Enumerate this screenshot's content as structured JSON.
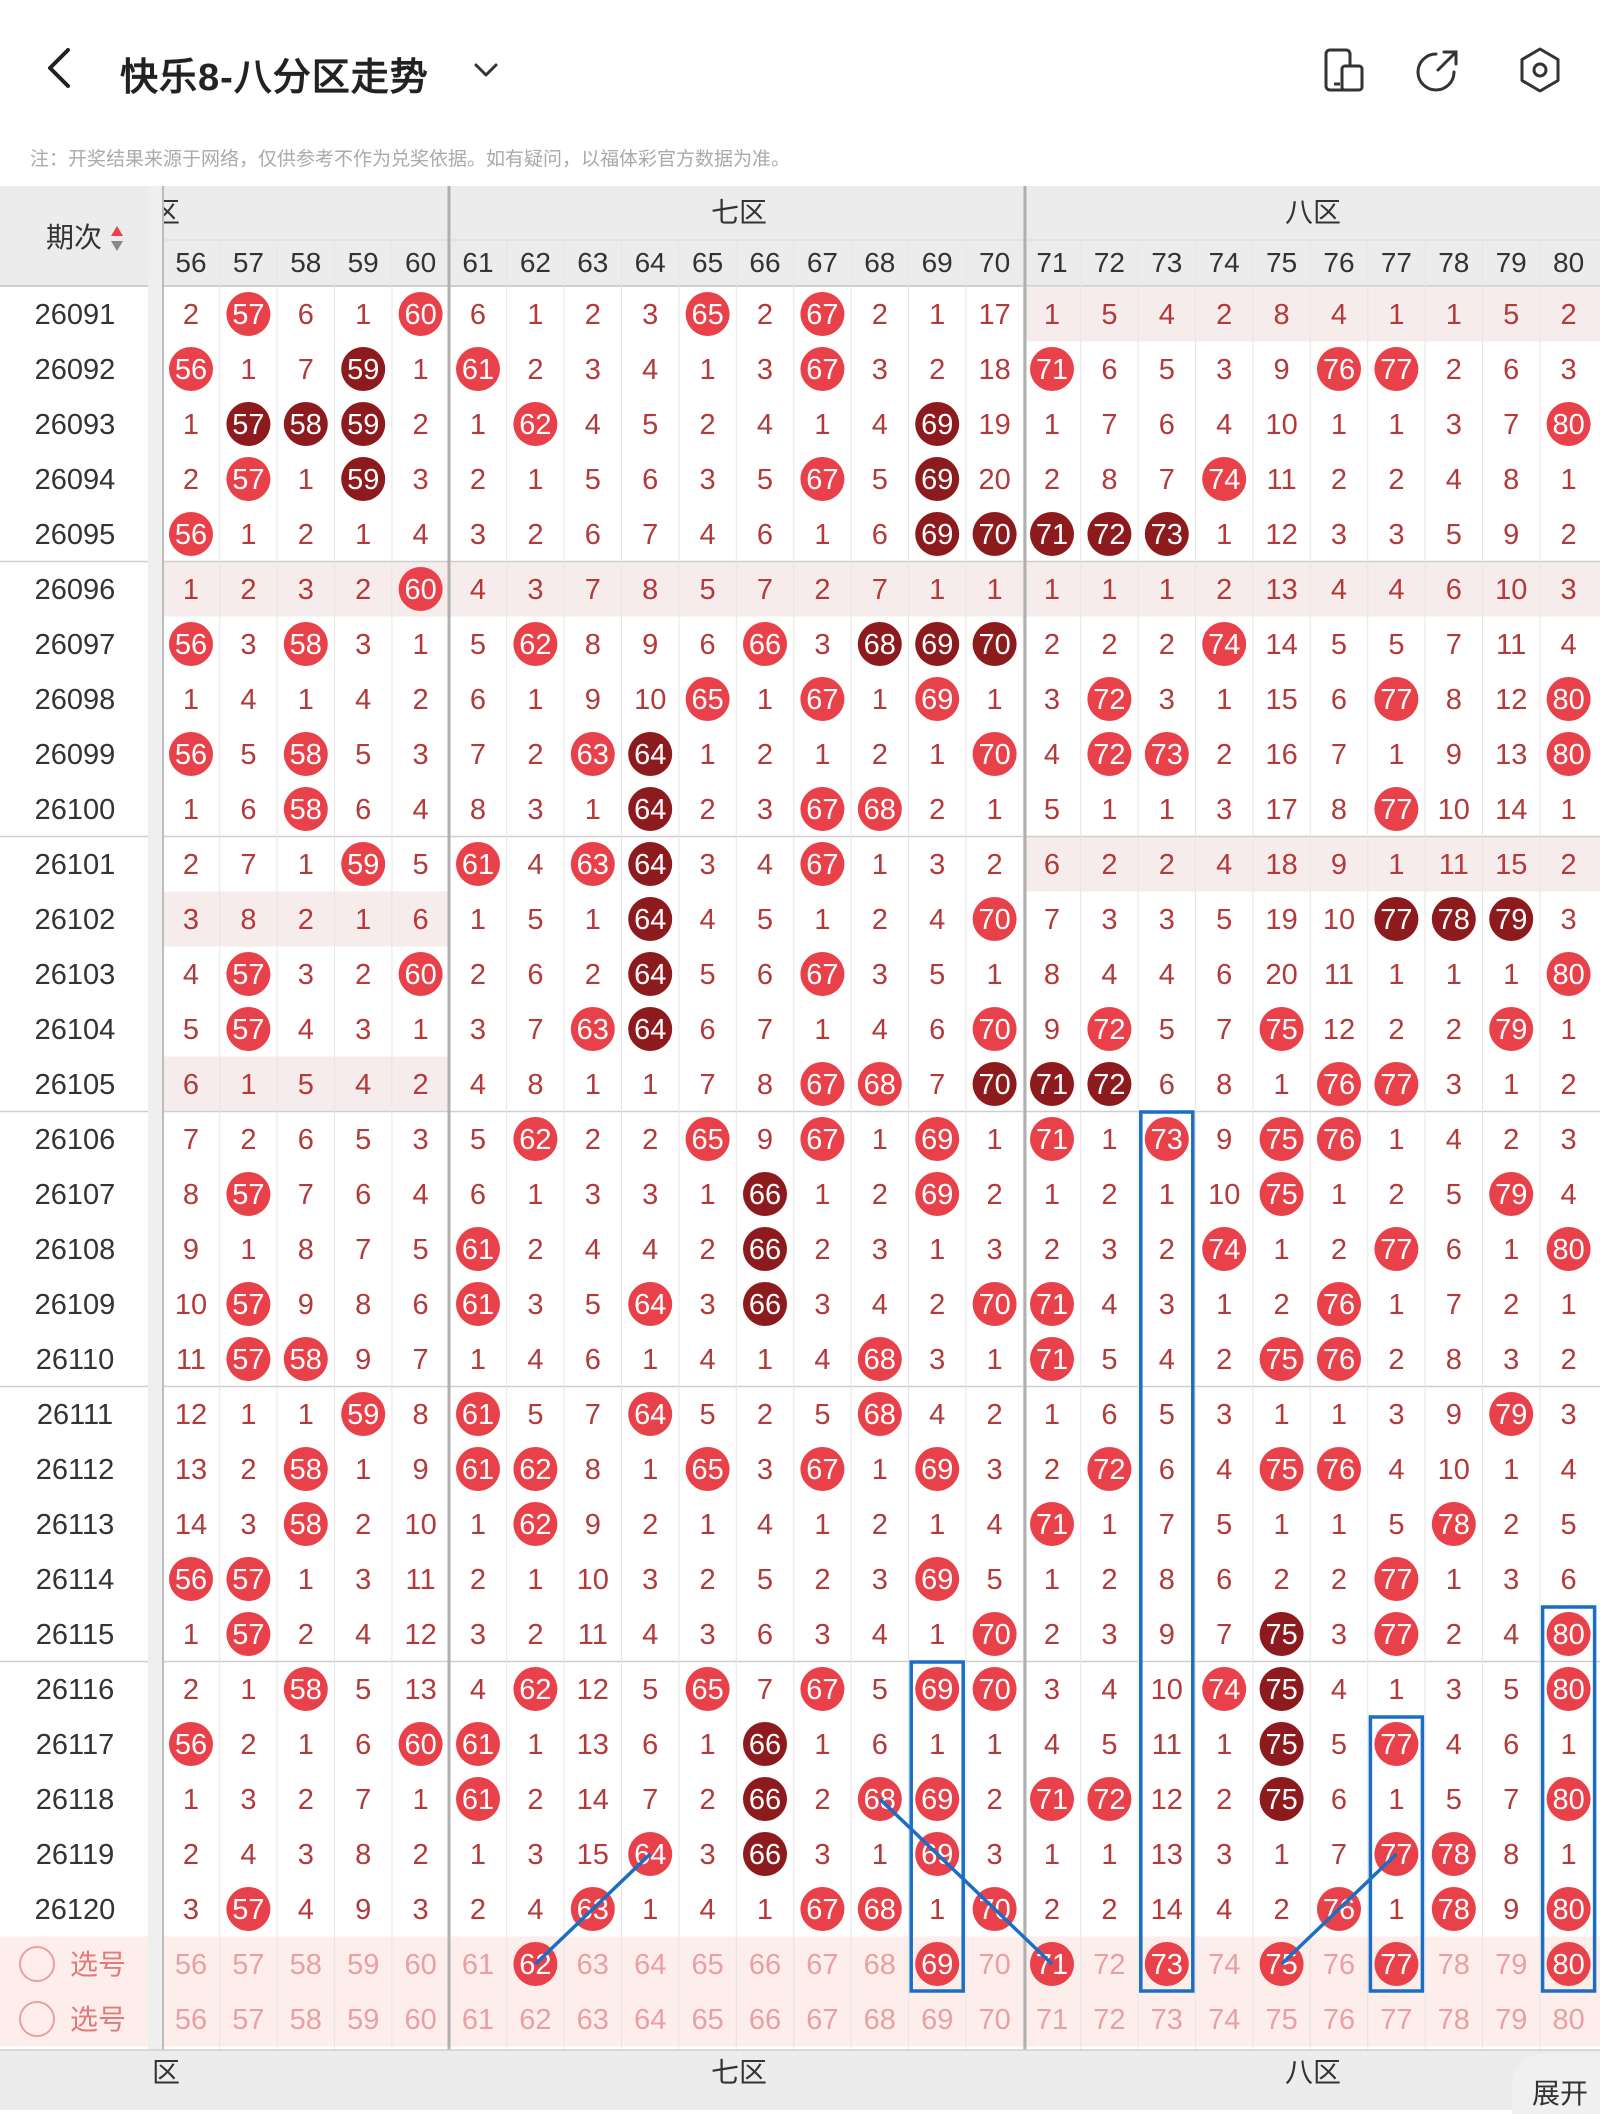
{
  "header": {
    "title": "快乐8-八分区走势",
    "back_icon": "back-arrow-icon",
    "dropdown_icon": "chevron-down-icon",
    "icons": [
      "phone-toggle-icon",
      "share-icon",
      "settings-icon"
    ]
  },
  "note": "注：开奖结果来源于网络，仅供参考不作为兑奖依据。如有疑问，以福体彩官方数据为准。",
  "table": {
    "period_header": "期次",
    "zones": [
      {
        "label": "六区"
      },
      {
        "label": "七区"
      },
      {
        "label": "八区"
      }
    ],
    "zone_labels_cut": "区",
    "columns": [
      56,
      57,
      58,
      59,
      60,
      61,
      62,
      63,
      64,
      65,
      66,
      67,
      68,
      69,
      70,
      71,
      72,
      73,
      74,
      75,
      76,
      77,
      78,
      79,
      80
    ],
    "rows": [
      {
        "period": "26091",
        "cells": [
          2,
          "h57",
          6,
          1,
          "h60",
          6,
          1,
          2,
          3,
          "h65",
          2,
          "h67",
          2,
          1,
          17,
          1,
          5,
          4,
          2,
          8,
          4,
          1,
          1,
          5,
          2
        ]
      },
      {
        "period": "26092",
        "cells": [
          "h56",
          1,
          7,
          "d59",
          1,
          "h61",
          2,
          3,
          4,
          1,
          3,
          "h67",
          3,
          2,
          18,
          "h71",
          6,
          5,
          3,
          9,
          "h76",
          "h77",
          2,
          6,
          3
        ]
      },
      {
        "period": "26093",
        "cells": [
          1,
          "d57",
          "d58",
          "d59",
          2,
          1,
          "h62",
          4,
          5,
          2,
          4,
          1,
          4,
          "d69",
          19,
          1,
          7,
          6,
          4,
          10,
          1,
          1,
          3,
          7,
          "h80"
        ]
      },
      {
        "period": "26094",
        "cells": [
          2,
          "h57",
          1,
          "d59",
          3,
          2,
          1,
          5,
          6,
          3,
          5,
          "h67",
          5,
          "d69",
          20,
          2,
          8,
          7,
          "h74",
          11,
          2,
          2,
          4,
          8,
          1
        ]
      },
      {
        "period": "26095",
        "cells": [
          "h56",
          1,
          2,
          1,
          4,
          3,
          2,
          6,
          7,
          4,
          6,
          1,
          6,
          "d69",
          "d70",
          "d71",
          "d72",
          "d73",
          1,
          12,
          3,
          3,
          5,
          9,
          2
        ]
      },
      {
        "period": "26096",
        "cells": [
          1,
          2,
          3,
          2,
          "h60",
          4,
          3,
          7,
          8,
          5,
          7,
          2,
          7,
          1,
          1,
          1,
          1,
          1,
          2,
          13,
          4,
          4,
          6,
          10,
          3
        ]
      },
      {
        "period": "26097",
        "cells": [
          "h56",
          3,
          "h58",
          3,
          1,
          5,
          "h62",
          8,
          9,
          6,
          "h66",
          3,
          "d68",
          "d69",
          "d70",
          2,
          2,
          2,
          "h74",
          14,
          5,
          5,
          7,
          11,
          4
        ]
      },
      {
        "period": "26098",
        "cells": [
          1,
          4,
          1,
          4,
          2,
          6,
          1,
          9,
          10,
          "h65",
          1,
          "h67",
          1,
          "h69",
          1,
          3,
          "h72",
          3,
          1,
          15,
          6,
          "h77",
          8,
          12,
          "h80"
        ]
      },
      {
        "period": "26099",
        "cells": [
          "h56",
          5,
          "h58",
          5,
          3,
          7,
          2,
          "h63",
          "d64",
          1,
          2,
          1,
          2,
          1,
          "h70",
          4,
          "h72",
          "h73",
          2,
          16,
          7,
          1,
          9,
          13,
          "h80"
        ]
      },
      {
        "period": "26100",
        "cells": [
          1,
          6,
          "h58",
          6,
          4,
          8,
          3,
          1,
          "d64",
          2,
          3,
          "h67",
          "h68",
          2,
          1,
          5,
          1,
          1,
          3,
          17,
          8,
          "h77",
          10,
          14,
          1
        ]
      },
      {
        "period": "26101",
        "cells": [
          2,
          7,
          1,
          "h59",
          5,
          "h61",
          4,
          "h63",
          "d64",
          3,
          4,
          "h67",
          1,
          3,
          2,
          6,
          2,
          2,
          4,
          18,
          9,
          1,
          11,
          15,
          2
        ]
      },
      {
        "period": "26102",
        "cells": [
          3,
          8,
          2,
          1,
          6,
          1,
          5,
          1,
          "d64",
          4,
          5,
          1,
          2,
          4,
          "h70",
          7,
          3,
          3,
          5,
          19,
          10,
          "d77",
          "d78",
          "d79",
          3
        ]
      },
      {
        "period": "26103",
        "cells": [
          4,
          "h57",
          3,
          2,
          "h60",
          2,
          6,
          2,
          "d64",
          5,
          6,
          "h67",
          3,
          5,
          1,
          8,
          4,
          4,
          6,
          20,
          11,
          1,
          1,
          1,
          "h80"
        ]
      },
      {
        "period": "26104",
        "cells": [
          5,
          "h57",
          4,
          3,
          1,
          3,
          7,
          "h63",
          "d64",
          6,
          7,
          1,
          4,
          6,
          "h70",
          9,
          "h72",
          5,
          7,
          "h75",
          12,
          2,
          2,
          "h79",
          1
        ]
      },
      {
        "period": "26105",
        "cells": [
          6,
          1,
          5,
          4,
          2,
          4,
          8,
          1,
          1,
          7,
          8,
          "h67",
          "h68",
          7,
          "d70",
          "d71",
          "d72",
          6,
          8,
          1,
          "h76",
          "h77",
          3,
          1,
          2
        ]
      },
      {
        "period": "26106",
        "cells": [
          7,
          2,
          6,
          5,
          3,
          5,
          "h62",
          2,
          2,
          "h65",
          9,
          "h67",
          1,
          "h69",
          1,
          "h71",
          1,
          "h73",
          9,
          "h75",
          "h76",
          1,
          4,
          2,
          3
        ]
      },
      {
        "period": "26107",
        "cells": [
          8,
          "h57",
          7,
          6,
          4,
          6,
          1,
          3,
          3,
          1,
          "d66",
          1,
          2,
          "h69",
          2,
          1,
          2,
          1,
          10,
          "h75",
          1,
          2,
          5,
          "h79",
          4
        ]
      },
      {
        "period": "26108",
        "cells": [
          9,
          1,
          8,
          7,
          5,
          "h61",
          2,
          4,
          4,
          2,
          "d66",
          2,
          3,
          1,
          3,
          2,
          3,
          2,
          "h74",
          1,
          2,
          "h77",
          6,
          1,
          "h80"
        ]
      },
      {
        "period": "26109",
        "cells": [
          10,
          "h57",
          9,
          8,
          6,
          "h61",
          3,
          5,
          "h64",
          3,
          "d66",
          3,
          4,
          2,
          "h70",
          "h71",
          4,
          3,
          1,
          2,
          "h76",
          1,
          7,
          2,
          1
        ]
      },
      {
        "period": "26110",
        "cells": [
          11,
          "h57",
          "h58",
          9,
          7,
          1,
          4,
          6,
          1,
          4,
          1,
          4,
          "h68",
          3,
          1,
          "h71",
          5,
          4,
          2,
          "h75",
          "h76",
          2,
          8,
          3,
          2
        ]
      },
      {
        "period": "26111",
        "cells": [
          12,
          1,
          1,
          "h59",
          8,
          "h61",
          5,
          7,
          "h64",
          5,
          2,
          5,
          "h68",
          4,
          2,
          1,
          6,
          5,
          3,
          1,
          1,
          3,
          9,
          "h79",
          3
        ]
      },
      {
        "period": "26112",
        "cells": [
          13,
          2,
          "h58",
          1,
          9,
          "h61",
          "h62",
          8,
          1,
          "h65",
          3,
          "h67",
          1,
          "h69",
          3,
          2,
          "h72",
          6,
          4,
          "h75",
          "h76",
          4,
          10,
          1,
          4
        ]
      },
      {
        "period": "26113",
        "cells": [
          14,
          3,
          "h58",
          2,
          10,
          1,
          "h62",
          9,
          2,
          1,
          4,
          1,
          2,
          1,
          4,
          "h71",
          1,
          7,
          5,
          1,
          1,
          5,
          "h78",
          2,
          5
        ]
      },
      {
        "period": "26114",
        "cells": [
          "h56",
          "h57",
          1,
          3,
          11,
          2,
          1,
          10,
          3,
          2,
          5,
          2,
          3,
          "h69",
          5,
          1,
          2,
          8,
          6,
          2,
          2,
          "h77",
          1,
          3,
          6
        ]
      },
      {
        "period": "26115",
        "cells": [
          1,
          "h57",
          2,
          4,
          12,
          3,
          2,
          11,
          4,
          3,
          6,
          3,
          4,
          1,
          "h70",
          2,
          3,
          9,
          7,
          "d75",
          3,
          "h77",
          2,
          4,
          "h80"
        ]
      },
      {
        "period": "26116",
        "cells": [
          2,
          1,
          "h58",
          5,
          13,
          4,
          "h62",
          12,
          5,
          "h65",
          7,
          "h67",
          5,
          "h69",
          "h70",
          3,
          4,
          10,
          "h74",
          "d75",
          4,
          1,
          3,
          5,
          "h80"
        ]
      },
      {
        "period": "26117",
        "cells": [
          "h56",
          2,
          1,
          6,
          "h60",
          "h61",
          1,
          13,
          6,
          1,
          "d66",
          1,
          6,
          1,
          1,
          4,
          5,
          11,
          1,
          "d75",
          5,
          "h77",
          4,
          6,
          1
        ]
      },
      {
        "period": "26118",
        "cells": [
          1,
          3,
          2,
          7,
          1,
          "h61",
          2,
          14,
          7,
          2,
          "d66",
          2,
          "h68",
          "h69",
          2,
          "h71",
          "h72",
          12,
          2,
          "d75",
          6,
          1,
          5,
          7,
          "h80"
        ]
      },
      {
        "period": "26119",
        "cells": [
          2,
          4,
          3,
          8,
          2,
          1,
          3,
          15,
          "h64",
          3,
          "d66",
          3,
          1,
          "h69",
          3,
          1,
          1,
          13,
          3,
          1,
          7,
          "h77",
          "h78",
          8,
          1
        ]
      },
      {
        "period": "26120",
        "cells": [
          3,
          "h57",
          4,
          9,
          3,
          2,
          4,
          "h63",
          1,
          4,
          1,
          "h67",
          "h68",
          1,
          "h70",
          2,
          2,
          14,
          4,
          2,
          "h76",
          1,
          "h78",
          9,
          "h80"
        ]
      }
    ],
    "select_rows": [
      {
        "label": "选号",
        "selected": [
          "62",
          "69",
          "71",
          "73",
          "75",
          "77",
          "80"
        ]
      },
      {
        "label": "选号",
        "selected": []
      }
    ]
  },
  "colors": {
    "hit": "#e8414a",
    "dark": "#8d1a1d",
    "ghost": "#e9a0a3",
    "box": "#1a6fc4",
    "zone_line": "#b0b0b0",
    "pink_row": "#f6ecec",
    "select_bg": "#fdeeec",
    "header_bg": "#ececec"
  },
  "expand_label": "展开"
}
